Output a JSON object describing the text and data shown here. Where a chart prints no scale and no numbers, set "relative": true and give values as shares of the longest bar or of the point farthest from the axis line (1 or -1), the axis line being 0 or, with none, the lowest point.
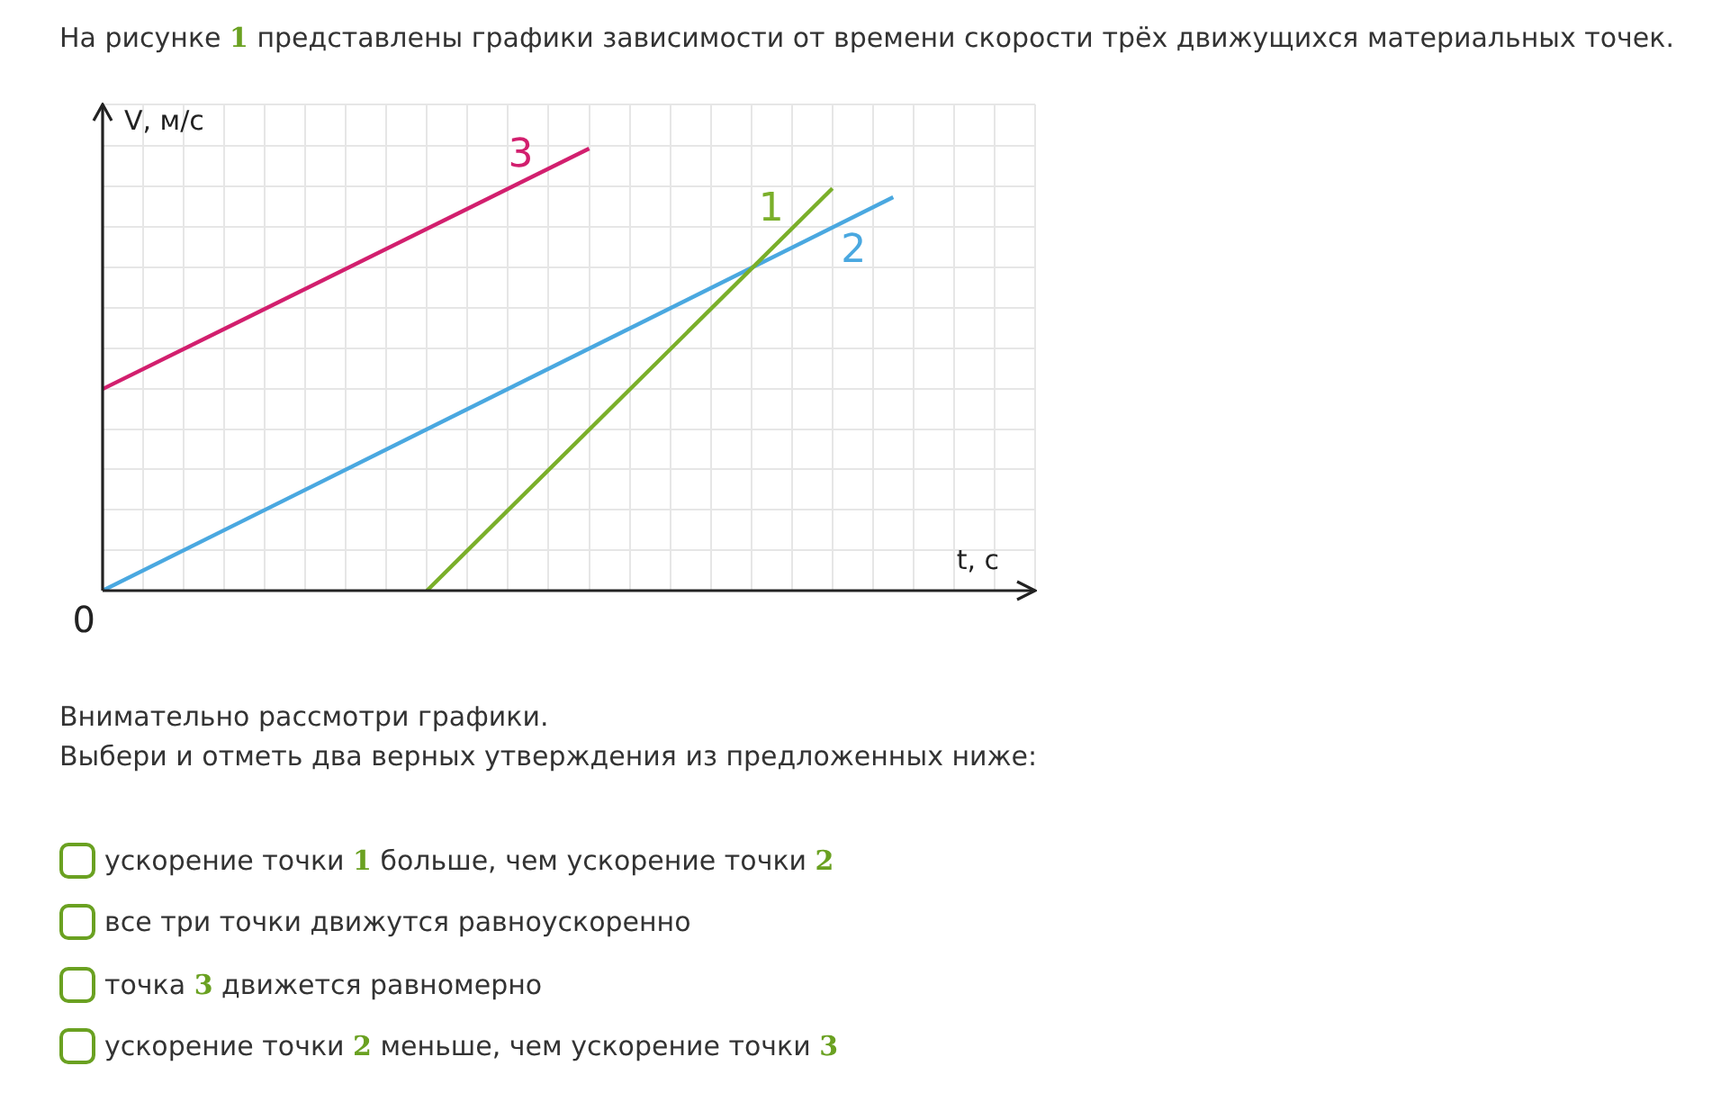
{
  "chart_data": {
    "type": "line",
    "relative": true,
    "title": "На рисунке 1 представлены графики зависимости от времени скорости трёх движущихся материальных точек.",
    "xlabel": "t, с",
    "ylabel": "V, м/с",
    "grid": true,
    "legend": false,
    "tick_labels": false,
    "categories": [
      null,
      null,
      null,
      null,
      null,
      null,
      null,
      null,
      null,
      null,
      null,
      null,
      null,
      null,
      null,
      null,
      null,
      null,
      null,
      null,
      null,
      null,
      null,
      null,
      null,
      null,
      null,
      null,
      null,
      null,
      null,
      null,
      null,
      null,
      null,
      null,
      null,
      null,
      null,
      null,
      null,
      null,
      null,
      null,
      null,
      null,
      null
    ],
    "series": [
      {
        "name": "1",
        "color": "#7aaf2a",
        "values": [
          null,
          null,
          null,
          null,
          null,
          null,
          null,
          null,
          null,
          null,
          null,
          null,
          null,
          null,
          null,
          null,
          0,
          null,
          null,
          null,
          null,
          null,
          null,
          null,
          null,
          null,
          null,
          null,
          null,
          null,
          null,
          null,
          null,
          null,
          null,
          null,
          0.91,
          null,
          null,
          null,
          null,
          null,
          null,
          null,
          null,
          null,
          null
        ]
      },
      {
        "name": "2",
        "color": "#4aa8e0",
        "values": [
          0,
          null,
          null,
          null,
          null,
          null,
          null,
          null,
          null,
          null,
          null,
          null,
          null,
          null,
          null,
          null,
          null,
          null,
          null,
          null,
          null,
          null,
          null,
          null,
          null,
          null,
          null,
          null,
          null,
          null,
          null,
          null,
          null,
          null,
          null,
          null,
          null,
          null,
          null,
          0.89,
          null,
          null,
          null,
          null,
          null,
          null,
          null
        ]
      },
      {
        "name": "3",
        "color": "#d21f6e",
        "values": [
          0.456,
          null,
          null,
          null,
          null,
          null,
          null,
          null,
          null,
          null,
          null,
          null,
          null,
          null,
          null,
          null,
          null,
          null,
          null,
          null,
          null,
          null,
          null,
          null,
          1,
          null,
          null,
          null,
          null,
          null,
          null,
          null,
          null,
          null,
          null,
          null,
          null,
          null,
          null,
          null,
          null,
          null,
          null,
          null,
          null,
          null,
          null
        ]
      }
    ],
    "annotations": [
      "0",
      "Внимательно рассмотри графики.",
      "Выбери и отметь два верных утверждения из предложенных ниже:",
      "ускорение точки 1 больше, чем ускорение точки 2",
      "все три точки движутся равноускоренно",
      "точка 3 движется равномерно",
      "ускорение точки 2 меньше, чем ускорение точки 3"
    ]
  }
}
